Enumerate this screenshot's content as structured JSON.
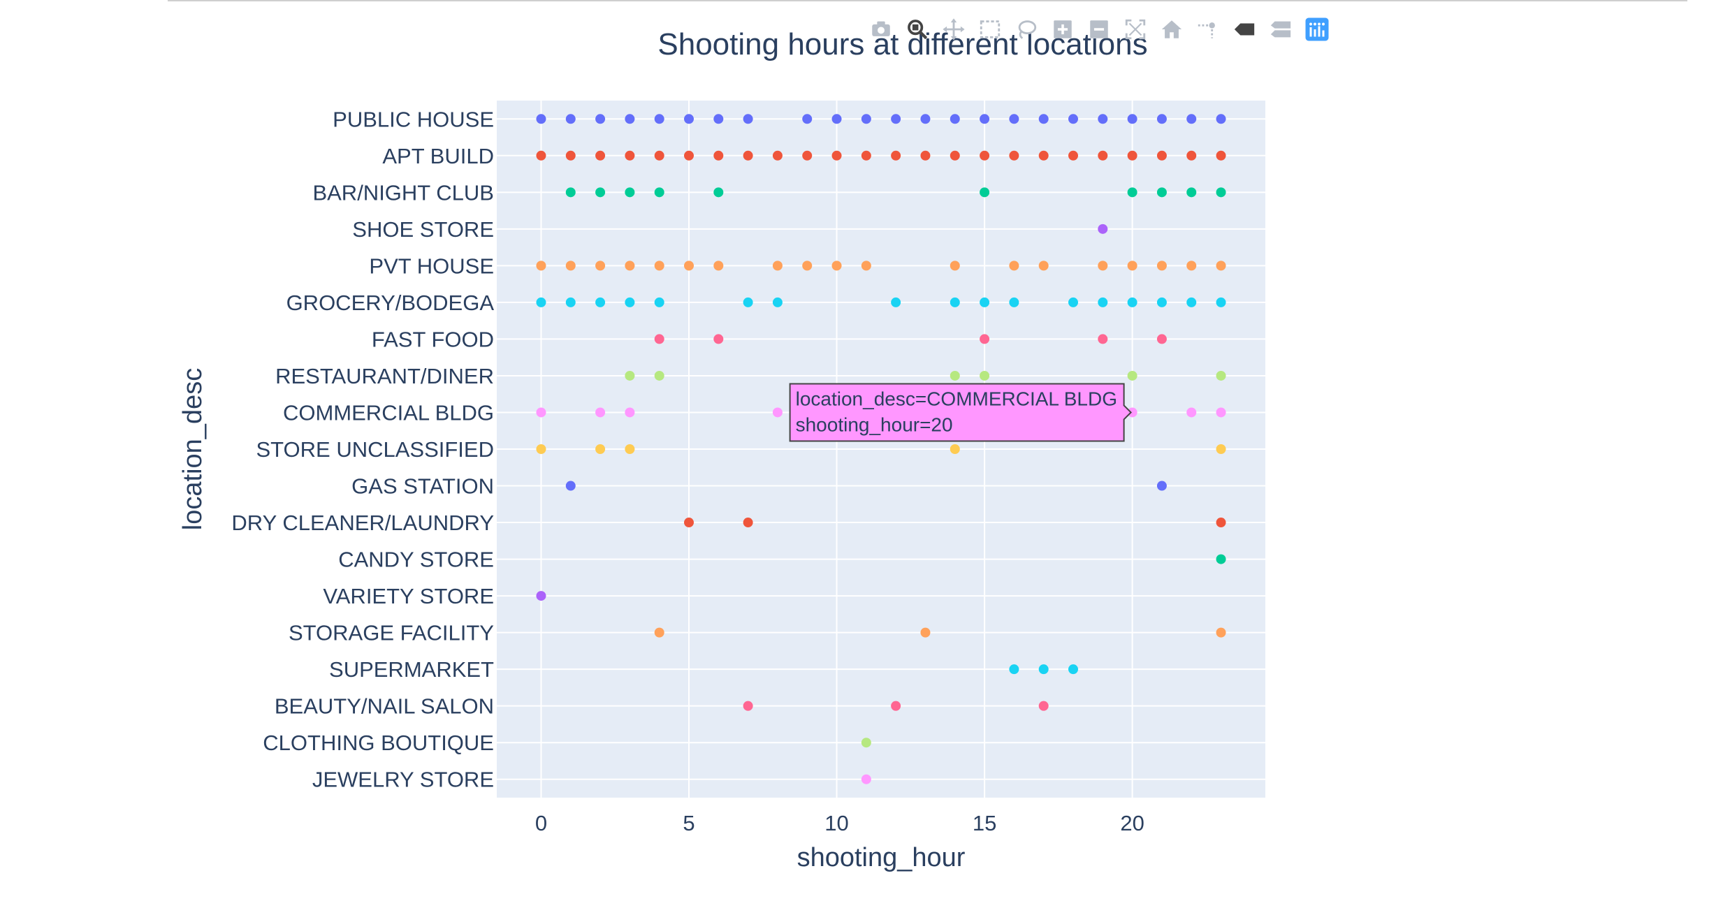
{
  "toolbar": {
    "buttons": [
      {
        "icon": "camera-icon",
        "active": false
      },
      {
        "icon": "zoom-icon",
        "active": true
      },
      {
        "icon": "pan-icon",
        "active": false
      },
      {
        "icon": "box-select-icon",
        "active": false
      },
      {
        "icon": "lasso-select-icon",
        "active": false
      },
      {
        "icon": "zoom-in-icon",
        "active": false
      },
      {
        "icon": "zoom-out-icon",
        "active": false
      },
      {
        "icon": "autoscale-icon",
        "active": false
      },
      {
        "icon": "reset-axes-icon",
        "active": false
      },
      {
        "icon": "spike-lines-icon",
        "active": false
      },
      {
        "icon": "hover-closest-icon",
        "active": false
      },
      {
        "icon": "hover-compare-icon",
        "active": false
      },
      {
        "icon": "plotly-logo-icon",
        "active": false
      }
    ]
  },
  "chart_data": {
    "type": "scatter",
    "title": "Shooting hours at different locations",
    "xlabel": "shooting_hour",
    "ylabel": "location_desc",
    "xlim": [
      -1.5,
      24.5
    ],
    "xticks": [
      0,
      5,
      10,
      15,
      20
    ],
    "grid": true,
    "legend": "none",
    "colors": {
      "plot_bg": "#e5ecf6",
      "grid": "#ffffff",
      "text": "#2a3f5f"
    },
    "categories": [
      "PUBLIC HOUSE",
      "APT BUILD",
      "BAR/NIGHT CLUB",
      "SHOE STORE",
      "PVT HOUSE",
      "GROCERY/BODEGA",
      "FAST FOOD",
      "RESTAURANT/DINER",
      "COMMERCIAL BLDG",
      "STORE UNCLASSIFIED",
      "GAS STATION",
      "DRY CLEANER/LAUNDRY",
      "CANDY STORE",
      "VARIETY STORE",
      "STORAGE FACILITY",
      "SUPERMARKET",
      "BEAUTY/NAIL SALON",
      "CLOTHING BOUTIQUE",
      "JEWELRY STORE"
    ],
    "series": [
      {
        "category": "PUBLIC HOUSE",
        "color": "#636efa",
        "x": [
          0,
          1,
          2,
          3,
          4,
          5,
          6,
          7,
          9,
          10,
          11,
          12,
          13,
          14,
          15,
          16,
          17,
          18,
          19,
          20,
          21,
          22,
          23
        ]
      },
      {
        "category": "APT BUILD",
        "color": "#ef553b",
        "x": [
          0,
          1,
          2,
          3,
          4,
          5,
          6,
          7,
          8,
          9,
          10,
          11,
          12,
          13,
          14,
          15,
          16,
          17,
          18,
          19,
          20,
          21,
          22,
          23
        ]
      },
      {
        "category": "BAR/NIGHT CLUB",
        "color": "#00cc96",
        "x": [
          1,
          2,
          3,
          4,
          6,
          15,
          20,
          21,
          22,
          23
        ]
      },
      {
        "category": "SHOE STORE",
        "color": "#ab63fa",
        "x": [
          19
        ]
      },
      {
        "category": "PVT HOUSE",
        "color": "#ffa15a",
        "x": [
          0,
          1,
          2,
          3,
          4,
          5,
          6,
          8,
          9,
          10,
          11,
          14,
          16,
          17,
          19,
          20,
          21,
          22,
          23
        ]
      },
      {
        "category": "GROCERY/BODEGA",
        "color": "#19d3f3",
        "x": [
          0,
          1,
          2,
          3,
          4,
          7,
          8,
          12,
          14,
          15,
          16,
          18,
          19,
          20,
          21,
          22,
          23
        ]
      },
      {
        "category": "FAST FOOD",
        "color": "#ff6692",
        "x": [
          4,
          6,
          15,
          19,
          21
        ]
      },
      {
        "category": "RESTAURANT/DINER",
        "color": "#b6e880",
        "x": [
          3,
          4,
          14,
          15,
          20,
          23
        ]
      },
      {
        "category": "COMMERCIAL BLDG",
        "color": "#ff97ff",
        "x": [
          0,
          2,
          3,
          8,
          20,
          22,
          23
        ]
      },
      {
        "category": "STORE UNCLASSIFIED",
        "color": "#fecb52",
        "x": [
          0,
          2,
          3,
          14,
          23
        ]
      },
      {
        "category": "GAS STATION",
        "color": "#636efa",
        "x": [
          1,
          21
        ]
      },
      {
        "category": "DRY CLEANER/LAUNDRY",
        "color": "#ef553b",
        "x": [
          5,
          7,
          23
        ]
      },
      {
        "category": "CANDY STORE",
        "color": "#00cc96",
        "x": [
          23
        ]
      },
      {
        "category": "VARIETY STORE",
        "color": "#ab63fa",
        "x": [
          0
        ]
      },
      {
        "category": "STORAGE FACILITY",
        "color": "#ffa15a",
        "x": [
          4,
          13,
          23
        ]
      },
      {
        "category": "SUPERMARKET",
        "color": "#19d3f3",
        "x": [
          16,
          17,
          18
        ]
      },
      {
        "category": "BEAUTY/NAIL SALON",
        "color": "#ff6692",
        "x": [
          7,
          12,
          17
        ]
      },
      {
        "category": "CLOTHING BOUTIQUE",
        "color": "#b6e880",
        "x": [
          11
        ]
      },
      {
        "category": "JEWELRY STORE",
        "color": "#ff97ff",
        "x": [
          11
        ]
      }
    ],
    "tooltip": {
      "category": "COMMERCIAL BLDG",
      "x": 20,
      "line1": "location_desc=COMMERCIAL BLDG",
      "line2": "shooting_hour=20",
      "color": "#ff97ff"
    }
  }
}
